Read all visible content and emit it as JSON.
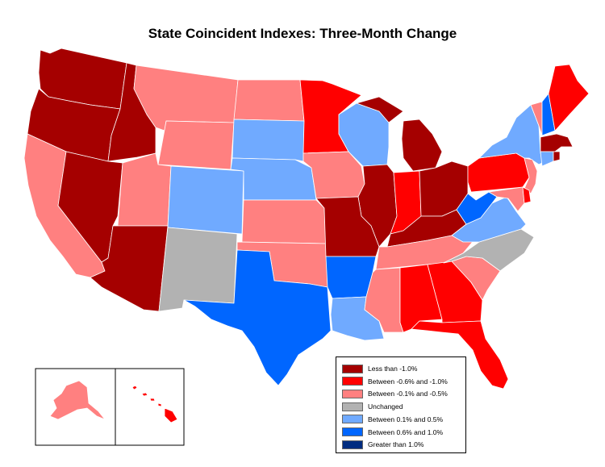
{
  "title": "State Coincident Indexes: Three-Month Change",
  "colors": {
    "lt_neg1": "#a50000",
    "neg06_neg1": "#ff0000",
    "neg01_neg05": "#ff8080",
    "unchanged": "#b2b2b2",
    "pos01_05": "#70aaff",
    "pos06_1": "#0066ff",
    "gt1": "#002c80"
  },
  "legend": [
    {
      "label": "Less than -1.0%",
      "color": "#a50000"
    },
    {
      "label": "Between -0.6% and -1.0%",
      "color": "#ff0000"
    },
    {
      "label": "Between -0.1% and -0.5%",
      "color": "#ff8080"
    },
    {
      "label": "Unchanged",
      "color": "#b2b2b2"
    },
    {
      "label": "Between 0.1% and 0.5%",
      "color": "#70aaff"
    },
    {
      "label": "Between 0.6% and 1.0%",
      "color": "#0066ff"
    },
    {
      "label": "Greater than 1.0%",
      "color": "#002c80"
    }
  ],
  "states": {
    "WA": "lt_neg1",
    "OR": "lt_neg1",
    "ID": "lt_neg1",
    "NV": "lt_neg1",
    "AZ": "lt_neg1",
    "MO": "lt_neg1",
    "IL": "lt_neg1",
    "MI": "lt_neg1",
    "OH": "lt_neg1",
    "KY": "lt_neg1",
    "MA": "lt_neg1",
    "RI": "lt_neg1",
    "MN": "neg06_neg1",
    "IN": "neg06_neg1",
    "PA": "neg06_neg1",
    "ME": "neg06_neg1",
    "AL": "neg06_neg1",
    "GA": "neg06_neg1",
    "FL": "neg06_neg1",
    "DE": "neg06_neg1",
    "HI": "neg06_neg1",
    "CA": "neg01_neg05",
    "MT": "neg01_neg05",
    "WY": "neg01_neg05",
    "UT": "neg01_neg05",
    "ND": "neg01_neg05",
    "KS": "neg01_neg05",
    "OK": "neg01_neg05",
    "IA": "neg01_neg05",
    "MS": "neg01_neg05",
    "TN": "neg01_neg05",
    "SC": "neg01_neg05",
    "VT": "neg01_neg05",
    "NJ": "neg01_neg05",
    "MD": "neg01_neg05",
    "AK": "neg01_neg05",
    "NM": "unchanged",
    "NC": "unchanged",
    "SD": "pos01_05",
    "NE": "pos01_05",
    "CO": "pos01_05",
    "WI": "pos01_05",
    "NY": "pos01_05",
    "VA": "pos01_05",
    "LA": "pos01_05",
    "CT": "pos01_05",
    "TX": "pos06_1",
    "AR": "pos06_1",
    "WV": "pos06_1",
    "NH": "pos06_1"
  }
}
